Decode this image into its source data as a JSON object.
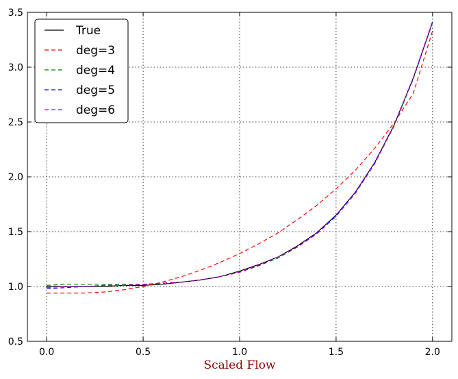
{
  "chart_data": {
    "type": "line",
    "title": "",
    "xlabel": "Scaled Flow",
    "ylabel": "",
    "xlim": [
      -0.1,
      2.1
    ],
    "ylim": [
      0.5,
      3.5
    ],
    "xticks": [
      0.0,
      0.5,
      1.0,
      1.5,
      2.0
    ],
    "xtick_labels": [
      "0.0",
      "0.5",
      "1.0",
      "1.5",
      "2.0"
    ],
    "yticks": [
      0.5,
      1.0,
      1.5,
      2.0,
      2.5,
      3.0,
      3.5
    ],
    "ytick_labels": [
      "0.5",
      "1.0",
      "1.5",
      "2.0",
      "2.5",
      "3.0",
      "3.5"
    ],
    "grid": true,
    "legend_position": "top-left",
    "xlabel_color": "#8b0000",
    "x": [
      0.0,
      0.1,
      0.2,
      0.3,
      0.4,
      0.5,
      0.6,
      0.7,
      0.8,
      0.9,
      1.0,
      1.1,
      1.2,
      1.3,
      1.4,
      1.5,
      1.6,
      1.7,
      1.8,
      1.9,
      2.0
    ],
    "series": [
      {
        "name": "True",
        "color": "#000000",
        "dash": "solid",
        "values": [
          1.0,
          1.0,
          1.0,
          1.0,
          1.01,
          1.01,
          1.02,
          1.04,
          1.06,
          1.09,
          1.14,
          1.2,
          1.27,
          1.37,
          1.49,
          1.65,
          1.86,
          2.13,
          2.47,
          2.9,
          3.41
        ]
      },
      {
        "name": "deg=3",
        "color": "#ff0000",
        "dash": "dashed",
        "values": [
          0.94,
          0.94,
          0.94,
          0.95,
          0.97,
          1.0,
          1.04,
          1.09,
          1.15,
          1.22,
          1.3,
          1.39,
          1.49,
          1.61,
          1.74,
          1.89,
          2.06,
          2.26,
          2.49,
          2.76,
          3.33
        ]
      },
      {
        "name": "deg=4",
        "color": "#008000",
        "dash": "dashed",
        "values": [
          1.01,
          1.02,
          1.02,
          1.02,
          1.02,
          1.02,
          1.03,
          1.04,
          1.06,
          1.09,
          1.13,
          1.19,
          1.26,
          1.36,
          1.48,
          1.64,
          1.85,
          2.12,
          2.46,
          2.89,
          3.41
        ]
      },
      {
        "name": "deg=5",
        "color": "#0000ff",
        "dash": "dashed",
        "values": [
          0.98,
          0.99,
          1.0,
          1.01,
          1.01,
          1.02,
          1.03,
          1.04,
          1.06,
          1.09,
          1.13,
          1.19,
          1.27,
          1.36,
          1.49,
          1.65,
          1.86,
          2.13,
          2.47,
          2.9,
          3.41
        ]
      },
      {
        "name": "deg=6",
        "color": "#bf00bf",
        "dash": "dashed",
        "values": [
          0.99,
          1.0,
          1.0,
          1.01,
          1.01,
          1.02,
          1.03,
          1.04,
          1.06,
          1.09,
          1.13,
          1.19,
          1.27,
          1.36,
          1.48,
          1.64,
          1.85,
          2.12,
          2.47,
          2.9,
          3.42
        ]
      }
    ]
  }
}
